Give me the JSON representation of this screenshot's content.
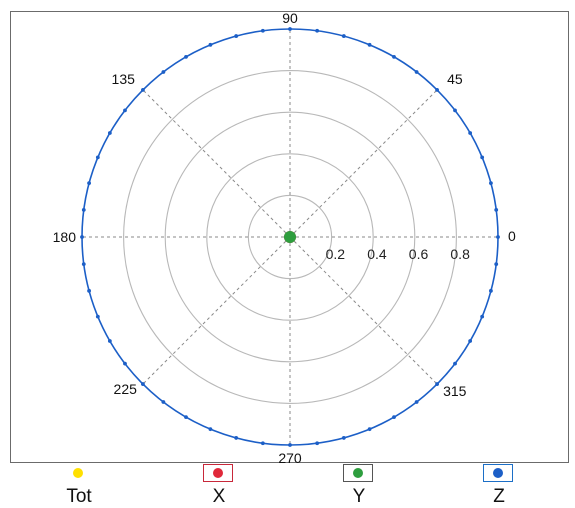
{
  "chart_data": {
    "type": "polar",
    "angle_ticks": [
      "0",
      "45",
      "90",
      "135",
      "180",
      "225",
      "270",
      "315"
    ],
    "radial_ticks": [
      "0.2",
      "0.4",
      "0.6",
      "0.8"
    ],
    "rlim": [
      0,
      1
    ],
    "grid": true,
    "series": [
      {
        "name": "Tot",
        "color": "#ffe000",
        "r": []
      },
      {
        "name": "X",
        "color": "#e0283a",
        "r": [
          0
        ]
      },
      {
        "name": "Y",
        "color": "#2e9e3e",
        "r": [
          0
        ]
      },
      {
        "name": "Z",
        "color": "#1c5fc7",
        "step_deg": 7.5,
        "r": 1.0
      }
    ],
    "legend": {
      "placement": "bottom",
      "items": [
        {
          "label": "Tot",
          "color": "#ffe000",
          "boxed": false,
          "box_color": ""
        },
        {
          "label": "X",
          "color": "#e0283a",
          "boxed": true,
          "box_color": "#c8283a"
        },
        {
          "label": "Y",
          "color": "#2e9e3e",
          "boxed": true,
          "box_color": "#555555"
        },
        {
          "label": "Z",
          "color": "#1c5fc7",
          "boxed": true,
          "box_color": "#1c6fc7"
        }
      ]
    }
  }
}
